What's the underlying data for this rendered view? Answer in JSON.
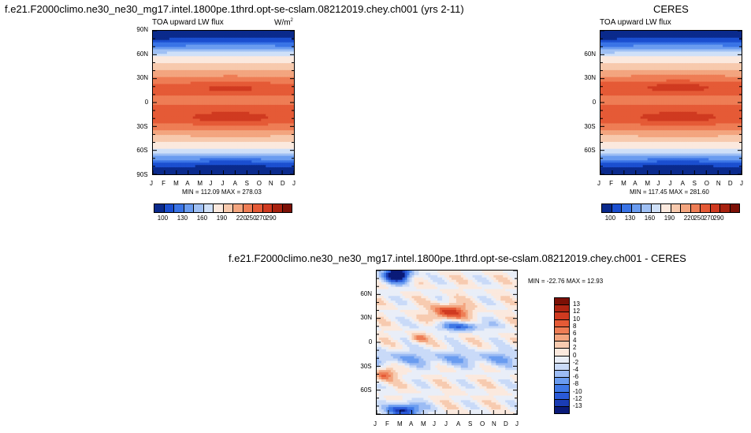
{
  "panels": {
    "top_left": {
      "main_title": "f.e21.F2000climo.ne30_ne30_mg17.intel.1800pe.1thrd.opt-se-cslam.08212019.chey.ch001 (yrs 2-11)",
      "left_string": "TOA upward LW flux",
      "right_string": "W/m",
      "right_sup": "2",
      "stats": "MIN = 112.09 MAX = 278.03"
    },
    "top_right": {
      "main_title": "CERES",
      "left_string": "TOA upward LW flux",
      "stats": "MIN = 117.45 MAX = 281.60"
    },
    "bottom": {
      "main_title": "f.e21.F2000climo.ne30_ne30_mg17.intel.1800pe.1thrd.opt-se-cslam.08212019.chey.ch001 - CERES",
      "stats": "MIN = -22.76 MAX =  12.93"
    }
  },
  "axes": {
    "months": [
      "J",
      "F",
      "M",
      "A",
      "M",
      "J",
      "J",
      "A",
      "S",
      "O",
      "N",
      "D",
      "J"
    ],
    "lat_labels_full": [
      "90N",
      "60N",
      "30N",
      "0",
      "30S",
      "60S",
      "90S"
    ],
    "lat_labels_inner": [
      "60N",
      "30N",
      "0",
      "30S",
      "60S"
    ]
  },
  "colorbars": {
    "abs_colors": [
      "#0a2a8c",
      "#1b4fd0",
      "#3a74e6",
      "#6a9cf0",
      "#9fc0f4",
      "#cfe0f8",
      "#fbe9de",
      "#f7c9ad",
      "#f3a57f",
      "#ee7d55",
      "#e55a36",
      "#d03a20",
      "#a82210",
      "#7c1006"
    ],
    "abs_labels": [
      "100",
      "130",
      "160",
      "190",
      "220",
      "250",
      "270",
      "290"
    ],
    "diff_colors": [
      "#0a1a78",
      "#1a3cb4",
      "#2a5ad8",
      "#3f78e6",
      "#6a9cf0",
      "#9cbcf4",
      "#c9daf8",
      "#e9eef8",
      "#fbe9de",
      "#f7cbb0",
      "#f3a57f",
      "#ee7d55",
      "#e55a36",
      "#d03a20",
      "#b02412",
      "#7c1006"
    ],
    "diff_labels": [
      "13",
      "12",
      "10",
      "8",
      "6",
      "4",
      "2",
      "0",
      "-2",
      "-4",
      "-6",
      "-8",
      "-10",
      "-12",
      "-13"
    ]
  },
  "chart_data": [
    {
      "type": "heatmap",
      "title": "f.e21.F2000climo.ne30_ne30_mg17.intel.1800pe.1thrd.opt-se-cslam.08212019.chey.ch001 (yrs 2-11)",
      "subtitle_left": "TOA upward LW flux",
      "units": "W/m2",
      "x": "month (Jan to Jan)",
      "y": "latitude (90N to 90S)",
      "levels": [
        100,
        110,
        130,
        145,
        160,
        175,
        190,
        205,
        220,
        235,
        250,
        260,
        270,
        280,
        290
      ],
      "min": 112.09,
      "max": 278.03
    },
    {
      "type": "heatmap",
      "title": "CERES",
      "subtitle_left": "TOA upward LW flux",
      "x": "month (Jan to Jan)",
      "y": "latitude (90N to 90S)",
      "levels": [
        100,
        110,
        130,
        145,
        160,
        175,
        190,
        205,
        220,
        235,
        250,
        260,
        270,
        280,
        290
      ],
      "min": 117.45,
      "max": 281.6
    },
    {
      "type": "heatmap",
      "title": "f.e21.F2000climo.ne30_ne30_mg17.intel.1800pe.1thrd.opt-se-cslam.08212019.chey.ch001 - CERES",
      "x": "month (Jan to Jan)",
      "y": "latitude (90N to 90S)",
      "levels": [
        -13,
        -12,
        -10,
        -8,
        -6,
        -4,
        -2,
        0,
        2,
        4,
        6,
        8,
        10,
        12,
        13
      ],
      "min": -22.76,
      "max": 12.93
    }
  ]
}
